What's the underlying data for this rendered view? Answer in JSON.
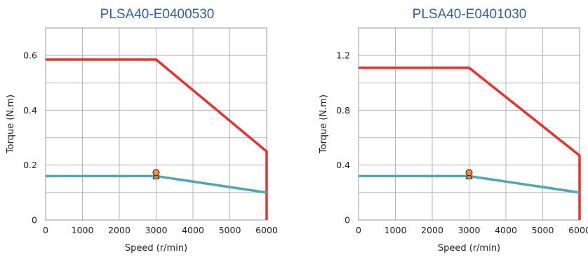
{
  "chart_data": [
    {
      "type": "line",
      "title": "PLSA40-E0400530",
      "xlabel": "Speed (r/min)",
      "ylabel": "Torque (N.m)",
      "xlim": [
        0,
        6000
      ],
      "ylim": [
        0,
        0.7
      ],
      "xticks": [
        0,
        1000,
        2000,
        3000,
        4000,
        5000,
        6000
      ],
      "yticks": [
        0,
        0.2,
        0.4,
        0.6
      ],
      "xgrid": [
        0,
        1000,
        2000,
        3000,
        4000,
        5000,
        6000
      ],
      "ygrid": [
        0,
        0.1,
        0.2,
        0.3,
        0.4,
        0.5,
        0.6,
        0.7
      ],
      "grid": true,
      "series": [
        {
          "color": "#e8322e",
          "x": [
            0,
            3000,
            6000,
            6000
          ],
          "y": [
            0.585,
            0.585,
            0.25,
            0
          ]
        },
        {
          "color": "#4fa6b9",
          "x": [
            0,
            3000,
            6000
          ],
          "y": [
            0.16,
            0.16,
            0.1
          ]
        }
      ],
      "rated_point": {
        "x": 3000,
        "y": 0.16,
        "color": "#f08a3c"
      }
    },
    {
      "type": "line",
      "title": "PLSA40-E0401030",
      "xlabel": "Speed (r/min)",
      "ylabel": "Torque (N.m)",
      "xlim": [
        0,
        6000
      ],
      "ylim": [
        0,
        1.4
      ],
      "xticks": [
        0,
        1000,
        2000,
        3000,
        4000,
        5000,
        6000
      ],
      "yticks": [
        0,
        0.4,
        0.8,
        1.2
      ],
      "xgrid": [
        0,
        1000,
        2000,
        3000,
        4000,
        5000,
        6000
      ],
      "ygrid": [
        0,
        0.2,
        0.4,
        0.6,
        0.8,
        1.0,
        1.2,
        1.4
      ],
      "grid": true,
      "series": [
        {
          "color": "#e8322e",
          "x": [
            0,
            3000,
            6000,
            6000
          ],
          "y": [
            1.11,
            1.11,
            0.47,
            0
          ]
        },
        {
          "color": "#4fa6b9",
          "x": [
            0,
            3000,
            6000
          ],
          "y": [
            0.32,
            0.32,
            0.2
          ]
        }
      ],
      "rated_point": {
        "x": 3000,
        "y": 0.32,
        "color": "#f08a3c"
      }
    }
  ]
}
